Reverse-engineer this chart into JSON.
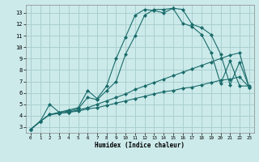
{
  "xlabel": "Humidex (Indice chaleur)",
  "background_color": "#cceaea",
  "grid_color": "#aacfcf",
  "line_color": "#1a6b6b",
  "xlim": [
    -0.5,
    23.5
  ],
  "ylim": [
    2.5,
    13.7
  ],
  "xticks": [
    0,
    1,
    2,
    3,
    4,
    5,
    6,
    7,
    8,
    9,
    10,
    11,
    12,
    13,
    14,
    15,
    16,
    17,
    18,
    19,
    20,
    21,
    22,
    23
  ],
  "yticks": [
    3,
    4,
    5,
    6,
    7,
    8,
    9,
    10,
    11,
    12,
    13
  ],
  "lines": [
    {
      "x": [
        0,
        1,
        2,
        3,
        4,
        5,
        6,
        7,
        8,
        9,
        10,
        11,
        12,
        13,
        14,
        15,
        16,
        17,
        18,
        19,
        20,
        21,
        22,
        23
      ],
      "y": [
        2.8,
        3.5,
        4.1,
        4.2,
        4.3,
        4.4,
        4.6,
        4.7,
        4.9,
        5.1,
        5.3,
        5.5,
        5.7,
        5.9,
        6.1,
        6.2,
        6.4,
        6.5,
        6.7,
        6.9,
        7.1,
        7.2,
        7.4,
        6.5
      ]
    },
    {
      "x": [
        0,
        1,
        2,
        3,
        4,
        5,
        6,
        7,
        8,
        9,
        10,
        11,
        12,
        13,
        14,
        15,
        16,
        17,
        18,
        19,
        20,
        21,
        22,
        23
      ],
      "y": [
        2.8,
        3.5,
        4.1,
        4.2,
        4.3,
        4.5,
        4.7,
        5.0,
        5.3,
        5.6,
        5.9,
        6.3,
        6.6,
        6.9,
        7.2,
        7.5,
        7.8,
        8.1,
        8.4,
        8.7,
        9.0,
        9.3,
        9.5,
        6.5
      ]
    },
    {
      "x": [
        0,
        1,
        2,
        3,
        4,
        5,
        6,
        7,
        8,
        9,
        10,
        11,
        12,
        13,
        14,
        15,
        16,
        17,
        18,
        19,
        20,
        21,
        22,
        23
      ],
      "y": [
        2.8,
        3.5,
        4.1,
        4.3,
        4.4,
        4.6,
        5.6,
        5.4,
        6.2,
        7.0,
        9.4,
        11.0,
        12.8,
        13.3,
        13.3,
        13.4,
        12.1,
        11.8,
        11.1,
        9.5,
        6.8,
        8.8,
        6.6,
        6.6
      ]
    },
    {
      "x": [
        0,
        1,
        2,
        3,
        4,
        5,
        6,
        7,
        8,
        9,
        10,
        11,
        12,
        13,
        14,
        15,
        16,
        17,
        18,
        19,
        20,
        21,
        22,
        23
      ],
      "y": [
        2.8,
        3.5,
        5.0,
        4.3,
        4.5,
        4.7,
        6.2,
        5.5,
        6.6,
        9.0,
        10.9,
        12.8,
        13.3,
        13.2,
        13.0,
        13.4,
        13.3,
        12.0,
        11.7,
        11.1,
        9.4,
        6.7,
        8.7,
        6.5
      ]
    }
  ],
  "marker": "D",
  "markersize": 2.0,
  "linewidth": 0.8
}
